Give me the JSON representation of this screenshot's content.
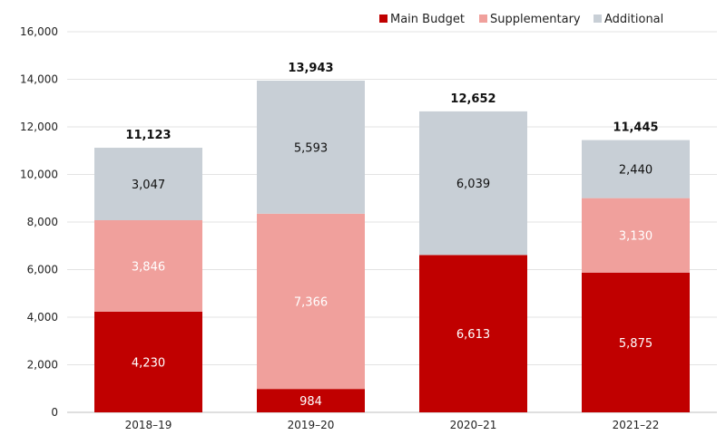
{
  "chart_data": {
    "type": "bar",
    "stacked": true,
    "title": "",
    "xlabel": "",
    "ylabel": "",
    "categories": [
      "2018–19",
      "2019–20",
      "2020–21",
      "2021–22"
    ],
    "series": [
      {
        "name": "Main Budget",
        "color": "#c00000",
        "values": [
          4230,
          984,
          6613,
          5875
        ],
        "labels": [
          "4,230",
          "984",
          "6,613",
          "5,875"
        ],
        "label_color": "#ffffff"
      },
      {
        "name": "Supplementary",
        "color": "#f0a09c",
        "values": [
          3846,
          7366,
          0,
          3130
        ],
        "labels": [
          "3,846",
          "7,366",
          "",
          "3,130"
        ],
        "label_color": "#ffffff"
      },
      {
        "name": "Additional",
        "color": "#c8cfd6",
        "values": [
          3047,
          5593,
          6039,
          2440
        ],
        "labels": [
          "3,047",
          "5,593",
          "6,039",
          "2,440"
        ],
        "label_color": "#111111"
      }
    ],
    "totals": [
      11123,
      13943,
      12652,
      11445
    ],
    "total_labels": [
      "11,123",
      "13,943",
      "12,652",
      "11,445"
    ],
    "ylim": [
      0,
      16000
    ],
    "yticks": [
      0,
      2000,
      4000,
      6000,
      8000,
      10000,
      12000,
      14000,
      16000
    ],
    "ytick_labels": [
      "0",
      "2,000",
      "4,000",
      "6,000",
      "8,000",
      "10,000",
      "12,000",
      "14,000",
      "16,000"
    ],
    "legend_position": "top-right",
    "grid": true
  }
}
